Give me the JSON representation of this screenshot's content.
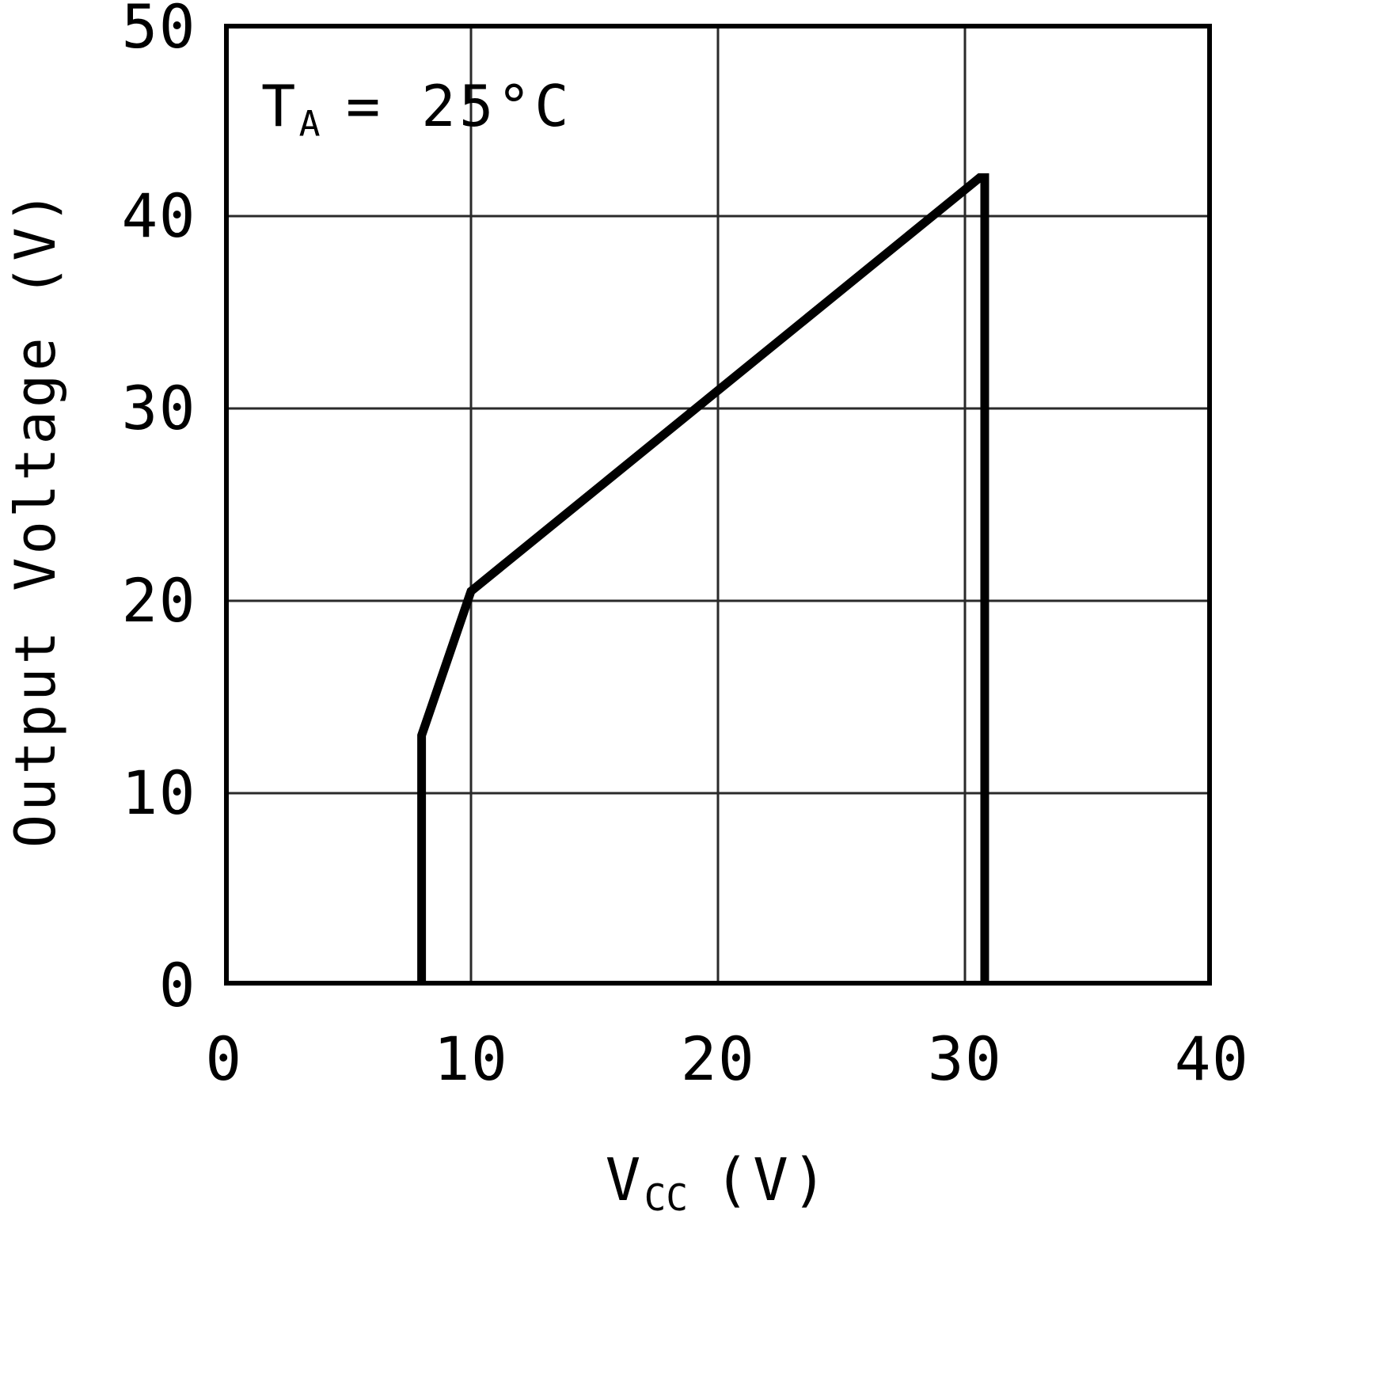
{
  "chart_data": {
    "type": "line",
    "title": "",
    "xlabel": {
      "base": "V",
      "sub": "CC",
      "rest": "(V)"
    },
    "ylabel": "Output Voltage (V)",
    "annotation": {
      "base": "T",
      "sub": "A",
      "rest": "= 25°C"
    },
    "xlim": [
      0,
      40
    ],
    "ylim": [
      0,
      50
    ],
    "xticks": [
      0,
      10,
      20,
      30,
      40
    ],
    "yticks": [
      0,
      10,
      20,
      30,
      40,
      50
    ],
    "grid": true,
    "legend": "none",
    "colors": {
      "line": "#000000",
      "grid": "#2a2a2a",
      "border": "#000000",
      "background": "#ffffff"
    },
    "series": [
      {
        "name": "Output Voltage",
        "points": [
          [
            0,
            0
          ],
          [
            8,
            0
          ],
          [
            8,
            13
          ],
          [
            10,
            20.5
          ],
          [
            30.6,
            42
          ],
          [
            30.8,
            42
          ],
          [
            30.8,
            0
          ],
          [
            40,
            0
          ]
        ]
      }
    ]
  }
}
